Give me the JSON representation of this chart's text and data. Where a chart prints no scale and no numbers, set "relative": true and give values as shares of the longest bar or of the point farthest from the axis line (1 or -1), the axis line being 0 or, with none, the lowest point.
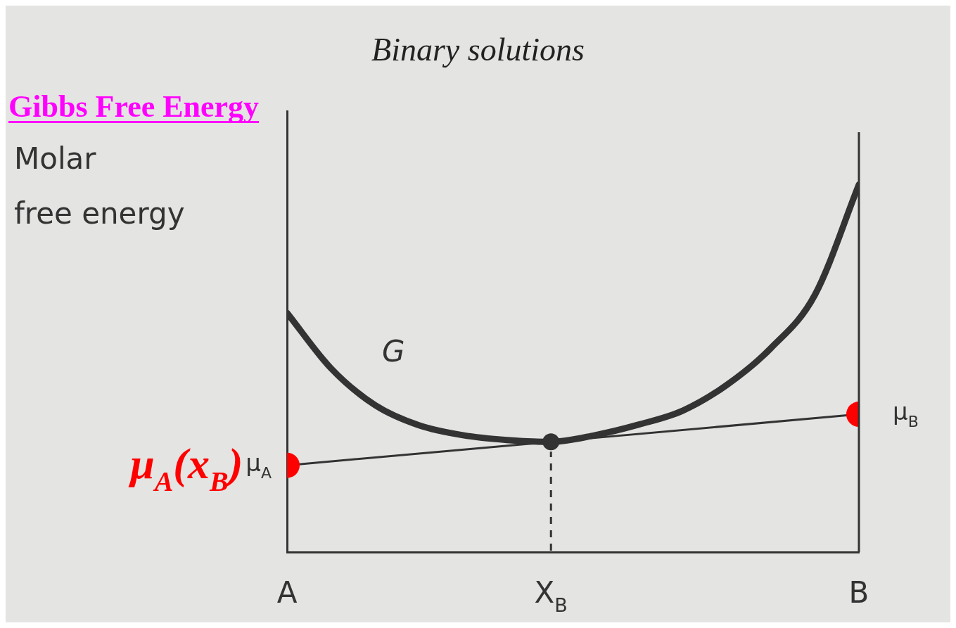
{
  "chart_data": {
    "type": "line",
    "title": "Binary solutions",
    "ylabel": "Molar free energy",
    "relative": true,
    "categories": [
      "A",
      null,
      null,
      null,
      null,
      null,
      "X$_{B}$",
      null,
      null,
      null,
      null,
      null,
      null,
      "B"
    ],
    "annotations": [
      "Gibbs Free Energy",
      {
        "text": "μ$_{A}$",
        "x": "A",
        "y": 0.236
      },
      {
        "text": "μ$_{A}$(x$_{B}$)",
        "x": "A",
        "y": 0.236
      },
      {
        "text": "μ$_{B}$",
        "x": "B",
        "y": 0.375
      }
    ],
    "ref_lines": [
      {
        "axis": "x",
        "value": "X$_{B}$",
        "color": "#333333",
        "line_style": "dashed"
      }
    ],
    "series": [
      {
        "name": "G",
        "type": "line",
        "color": "#333333",
        "marker": "none",
        "values": [
          0.651,
          0.5,
          0.4,
          0.345,
          0.318,
          0.305,
          0.3,
          0.318,
          0.347,
          0.385,
          0.455,
          0.555,
          0.7,
          1
        ]
      },
      {
        "type": "line",
        "color": "#333333",
        "marker": "none",
        "values": [
          0.236,
          null,
          null,
          null,
          null,
          null,
          null,
          null,
          null,
          null,
          null,
          null,
          null,
          0.375
        ]
      },
      {
        "type": "scatter",
        "color": "#ff0000",
        "marker": "circle",
        "x": [
          "A",
          "B"
        ],
        "values": [
          0.236,
          0.375
        ]
      },
      {
        "type": "scatter",
        "color": "#333333",
        "marker": "circle",
        "x": [
          "X$_{B}$"
        ],
        "values": [
          0.3
        ]
      }
    ]
  }
}
